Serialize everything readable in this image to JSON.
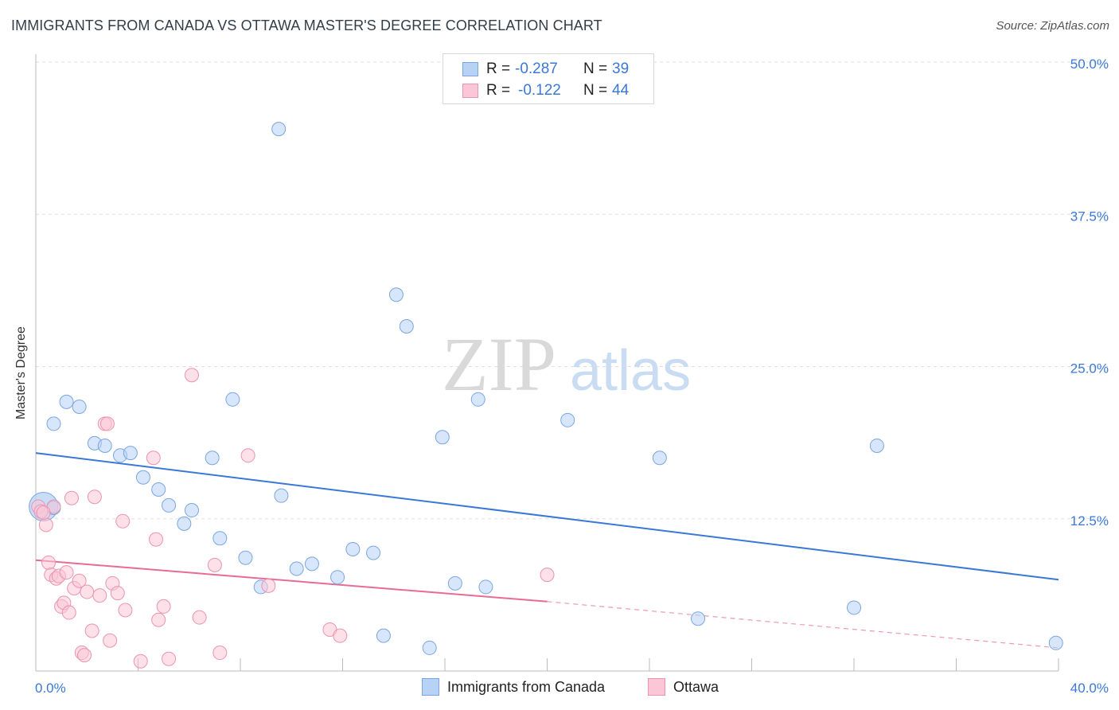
{
  "title": "IMMIGRANTS FROM CANADA VS OTTAWA MASTER'S DEGREE CORRELATION CHART",
  "source": "Source: ZipAtlas.com",
  "watermark": {
    "zip": "ZIP",
    "atlas": "atlas"
  },
  "legend": {
    "r_label": "R =",
    "n_label": "N =",
    "rows": [
      {
        "r": "-0.287",
        "n": "39",
        "fill": "#b7d2f5",
        "stroke": "#7aa6e0"
      },
      {
        "r": "-0.122",
        "n": "44",
        "fill": "#fbc6d6",
        "stroke": "#eb93b0"
      }
    ]
  },
  "bottom_legend": {
    "series1": "Immigrants from Canada",
    "series2": "Ottawa"
  },
  "chart_data": {
    "type": "scatter",
    "xlabel": "",
    "ylabel": "Master's Degree",
    "xlim": [
      0,
      40
    ],
    "ylim": [
      0,
      50
    ],
    "x_tick_labels": [
      "0.0%",
      "40.0%"
    ],
    "y_tick_labels": [
      "12.5%",
      "25.0%",
      "37.5%",
      "50.0%"
    ],
    "y_ticks": [
      12.5,
      25.0,
      37.5,
      50.0
    ],
    "series": [
      {
        "name": "Immigrants from Canada",
        "color": "#3a78d6",
        "fill": "#b7d2f5",
        "points": [
          [
            0.3,
            13.5
          ],
          [
            0.7,
            13.4
          ],
          [
            0.7,
            20.3
          ],
          [
            1.2,
            22.1
          ],
          [
            1.7,
            21.7
          ],
          [
            2.3,
            18.7
          ],
          [
            2.7,
            18.5
          ],
          [
            3.3,
            17.7
          ],
          [
            3.7,
            17.9
          ],
          [
            4.2,
            15.9
          ],
          [
            4.8,
            14.9
          ],
          [
            5.2,
            13.6
          ],
          [
            5.8,
            12.1
          ],
          [
            6.1,
            13.2
          ],
          [
            6.9,
            17.5
          ],
          [
            7.2,
            10.9
          ],
          [
            7.7,
            22.3
          ],
          [
            8.2,
            9.3
          ],
          [
            8.8,
            6.9
          ],
          [
            9.5,
            44.5
          ],
          [
            9.6,
            14.4
          ],
          [
            10.2,
            8.4
          ],
          [
            10.8,
            8.8
          ],
          [
            11.8,
            7.7
          ],
          [
            12.4,
            10.0
          ],
          [
            13.2,
            9.7
          ],
          [
            13.6,
            2.9
          ],
          [
            14.1,
            30.9
          ],
          [
            14.5,
            28.3
          ],
          [
            15.4,
            1.9
          ],
          [
            15.9,
            19.2
          ],
          [
            16.4,
            7.2
          ],
          [
            17.3,
            22.3
          ],
          [
            17.6,
            6.9
          ],
          [
            20.8,
            20.6
          ],
          [
            24.4,
            17.5
          ],
          [
            25.9,
            4.3
          ],
          [
            32.0,
            5.2
          ],
          [
            32.9,
            18.5
          ],
          [
            39.9,
            2.3
          ]
        ],
        "trend": {
          "x0": 0,
          "y0": 17.9,
          "x1": 40,
          "y1": 7.5
        }
      },
      {
        "name": "Ottawa",
        "color": "#e86b96",
        "fill": "#fbc6d6",
        "points": [
          [
            0.1,
            13.5
          ],
          [
            0.2,
            13.1
          ],
          [
            0.4,
            12.0
          ],
          [
            0.5,
            8.9
          ],
          [
            0.7,
            13.5
          ],
          [
            0.6,
            7.9
          ],
          [
            0.8,
            7.6
          ],
          [
            0.9,
            7.8
          ],
          [
            1.0,
            5.3
          ],
          [
            1.1,
            5.6
          ],
          [
            1.2,
            8.1
          ],
          [
            1.3,
            4.8
          ],
          [
            1.4,
            14.2
          ],
          [
            1.5,
            6.8
          ],
          [
            1.7,
            7.4
          ],
          [
            1.8,
            1.5
          ],
          [
            1.9,
            1.3
          ],
          [
            2.0,
            6.5
          ],
          [
            2.2,
            3.3
          ],
          [
            2.3,
            14.3
          ],
          [
            2.5,
            6.2
          ],
          [
            2.7,
            20.3
          ],
          [
            2.8,
            20.3
          ],
          [
            2.9,
            2.5
          ],
          [
            3.0,
            7.2
          ],
          [
            3.2,
            6.4
          ],
          [
            3.4,
            12.3
          ],
          [
            3.5,
            5.0
          ],
          [
            4.1,
            0.8
          ],
          [
            4.6,
            17.5
          ],
          [
            4.7,
            10.8
          ],
          [
            4.8,
            4.2
          ],
          [
            5.0,
            5.3
          ],
          [
            5.2,
            1.0
          ],
          [
            6.1,
            24.3
          ],
          [
            6.4,
            4.4
          ],
          [
            7.0,
            8.7
          ],
          [
            7.2,
            1.5
          ],
          [
            8.3,
            17.7
          ],
          [
            9.1,
            7.0
          ],
          [
            11.5,
            3.4
          ],
          [
            11.9,
            2.9
          ],
          [
            20.0,
            7.9
          ],
          [
            0.3,
            13.0
          ]
        ],
        "trend": {
          "x0": 0,
          "y0": 9.1,
          "x1": 20,
          "y1": 5.7
        },
        "trend_dashed": {
          "x0": 20,
          "y0": 5.7,
          "x1": 40,
          "y1": 1.9
        }
      }
    ]
  }
}
